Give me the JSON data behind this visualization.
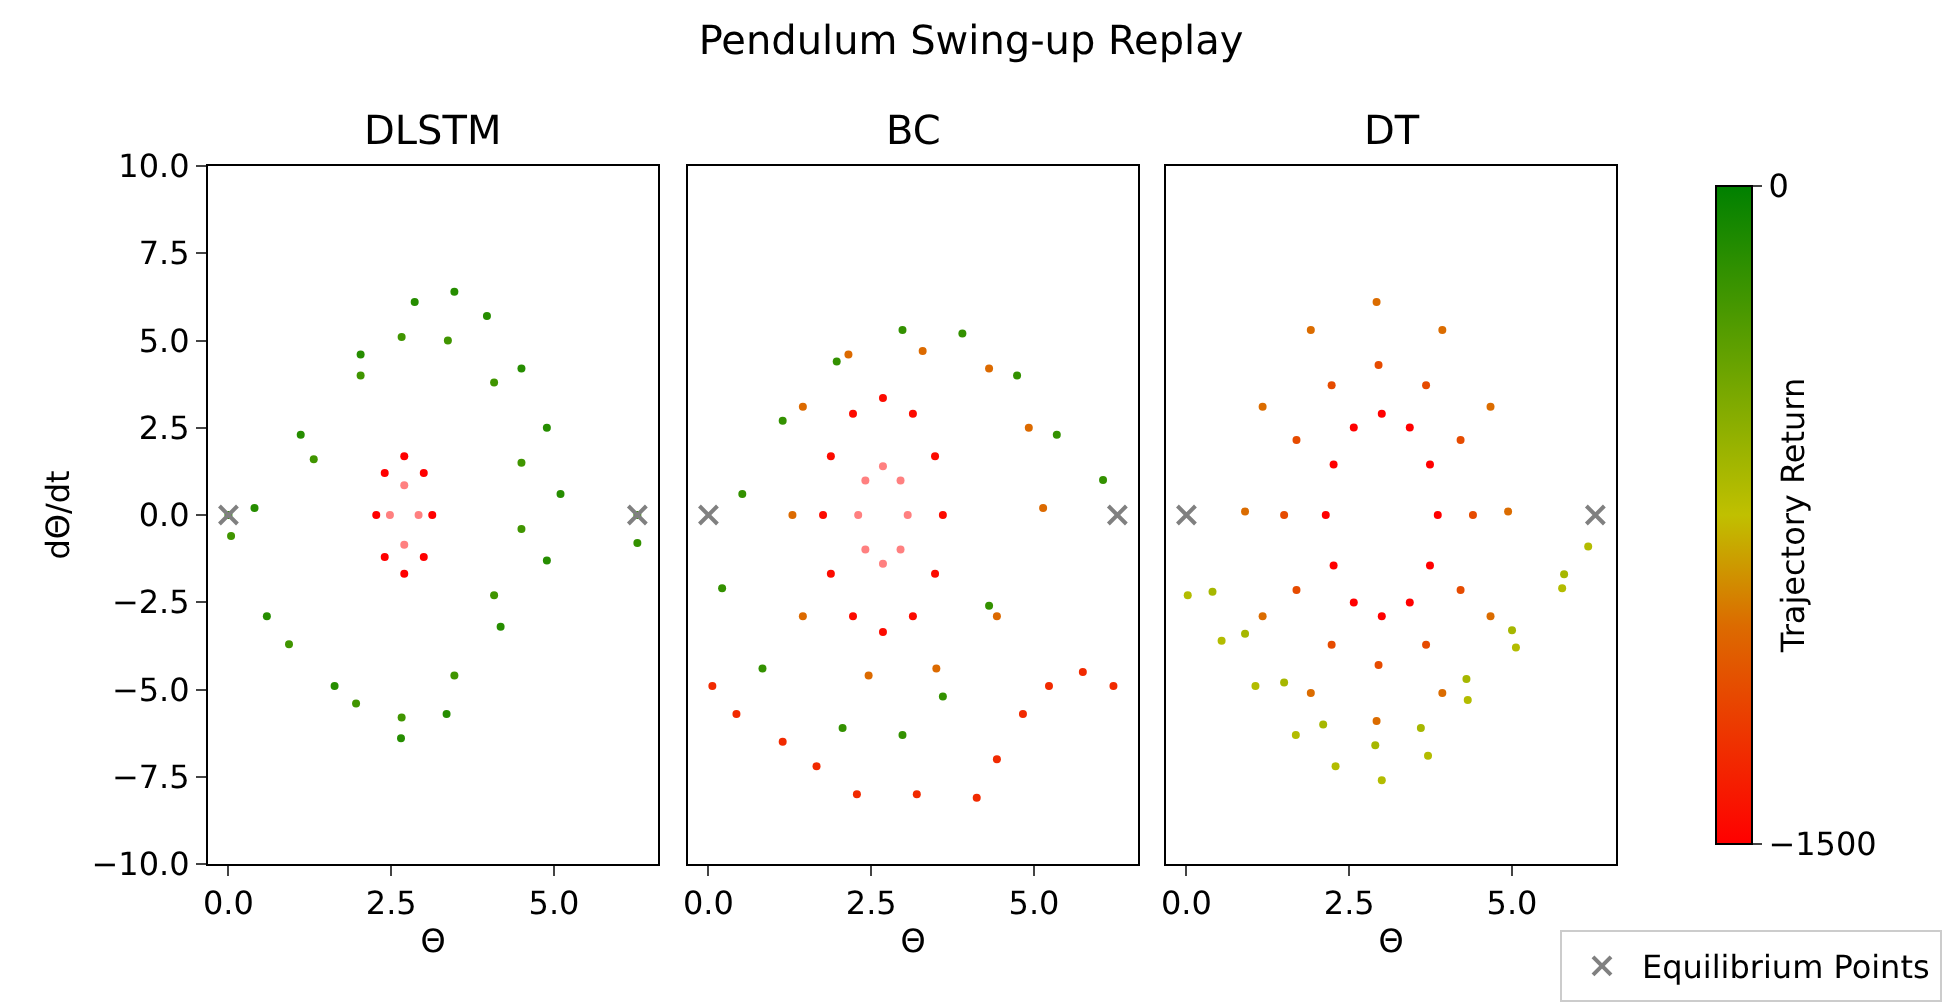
{
  "chart_data": [
    {
      "type": "scatter",
      "title": "DLSTM",
      "xlabel": "Θ",
      "ylabel": "dΘ/dt",
      "annotations": [
        "Pendulum Swing-up Replay"
      ],
      "xlim": [
        -0.314,
        6.597
      ],
      "xticks": [
        {
          "value": 0,
          "label": "0.0"
        },
        {
          "value": 2.5,
          "label": "2.5"
        },
        {
          "value": 5,
          "label": "5.0"
        }
      ],
      "ylim": [
        -10,
        10
      ],
      "yticks": [
        {
          "value": -10,
          "label": "−10.0"
        },
        {
          "value": -7.5,
          "label": "−7.5"
        },
        {
          "value": -5,
          "label": "−5.0"
        },
        {
          "value": -2.5,
          "label": "−2.5"
        },
        {
          "value": 0,
          "label": "0.0"
        },
        {
          "value": 2.5,
          "label": "2.5"
        },
        {
          "value": 5,
          "label": "5.0"
        },
        {
          "value": 7.5,
          "label": "7.5"
        },
        {
          "value": 10,
          "label": "10.0"
        }
      ],
      "series": [
        {
          "marker": "circle",
          "color": "#268d00",
          "x": [
            0,
            0.59,
            1.63,
            2.65,
            3.35,
            4.18,
            4.89,
            5.1,
            4.89,
            4.5,
            3.97,
            3.47,
            2.86,
            2.03,
            1.11,
            0.4
          ],
          "values": [
            0,
            -2.9,
            -4.9,
            -6.4,
            -5.7,
            -3.2,
            -1.3,
            0.6,
            2.5,
            4.2,
            5.7,
            6.4,
            6.1,
            4.6,
            2.3,
            0.2
          ]
        },
        {
          "marker": "circle",
          "color": "#409500",
          "x": [
            0.04,
            0.93,
            1.96,
            2.66,
            3.47,
            4.08,
            4.5,
            4.5,
            4.08,
            3.37,
            2.66,
            2.03,
            1.31
          ],
          "values": [
            -0.6,
            -3.7,
            -5.4,
            -5.8,
            -4.6,
            -2.3,
            -0.4,
            1.5,
            3.8,
            5.0,
            5.1,
            4.0,
            1.6
          ]
        },
        {
          "marker": "circle",
          "color": "#ff0000",
          "x": [
            2.7,
            3.0,
            3.13,
            3.0,
            2.7,
            2.4,
            2.27,
            2.4
          ],
          "values": [
            1.68,
            1.2,
            0,
            -1.2,
            -1.68,
            -1.2,
            0,
            1.2
          ]
        },
        {
          "marker": "circle",
          "color": "#ff8080",
          "x": [
            2.7,
            2.92,
            2.7,
            2.48
          ],
          "values": [
            0.85,
            0,
            -0.85,
            0
          ]
        },
        {
          "marker": "circle",
          "color": "#339100",
          "x": [
            6.28,
            6.28
          ],
          "values": [
            0,
            -0.8
          ]
        },
        {
          "marker": "cross",
          "color": "#808080",
          "x": [
            0,
            6.28
          ],
          "values": [
            0,
            0
          ]
        }
      ]
    },
    {
      "type": "scatter",
      "title": "BC",
      "xlabel": "Θ",
      "tick_labels": "x",
      "xlim": [
        -0.314,
        6.597
      ],
      "xticks": [
        {
          "value": 0,
          "label": "0.0"
        },
        {
          "value": 2.5,
          "label": "2.5"
        },
        {
          "value": 5,
          "label": "5.0"
        }
      ],
      "ylim": [
        -10,
        10
      ],
      "series": [
        {
          "marker": "circle",
          "color": "#fc0b00",
          "x": [
            3.6,
            3.48,
            3.14,
            2.68,
            2.22,
            1.88,
            1.76,
            1.88,
            2.22,
            2.68,
            3.14,
            3.48
          ],
          "values": [
            0,
            1.68,
            2.9,
            3.35,
            2.9,
            1.68,
            0,
            -1.68,
            -2.9,
            -3.35,
            -2.9,
            -1.68
          ]
        },
        {
          "marker": "circle",
          "color": "#ff8080",
          "x": [
            3.06,
            2.95,
            2.68,
            2.41,
            2.3,
            2.41,
            2.68,
            2.95
          ],
          "values": [
            0,
            0.99,
            1.4,
            0.99,
            0,
            -0.99,
            -1.4,
            -0.99
          ]
        },
        {
          "marker": "circle",
          "color": "#339100",
          "x": [
            0.21,
            0.83,
            2.06,
            2.98,
            3.6,
            4.31,
            0.52,
            1.14,
            1.97,
            2.98,
            3.9,
            4.74,
            5.35,
            6.06
          ],
          "values": [
            -2.1,
            -4.4,
            -6.1,
            -6.3,
            -5.2,
            -2.6,
            0.6,
            2.7,
            4.4,
            5.3,
            5.2,
            4.0,
            2.3,
            1.0
          ]
        },
        {
          "marker": "circle",
          "color": "#dc6a00",
          "x": [
            1.29,
            1.45,
            2.46,
            3.5,
            4.43,
            5.14,
            4.92,
            4.31,
            3.29,
            2.15,
            1.45
          ],
          "values": [
            0,
            -2.9,
            -4.6,
            -4.4,
            -2.9,
            0.2,
            2.5,
            4.2,
            4.7,
            4.6,
            3.1
          ]
        },
        {
          "marker": "circle",
          "color": "#f12a00",
          "x": [
            0.06,
            0.43,
            1.14,
            1.66,
            2.28,
            3.2,
            4.12,
            4.43,
            4.83,
            5.23,
            5.75,
            6.22
          ],
          "values": [
            -4.9,
            -5.7,
            -6.5,
            -7.2,
            -8.0,
            -8.0,
            -8.1,
            -7.0,
            -5.7,
            -4.9,
            -4.5,
            -4.9
          ]
        },
        {
          "marker": "cross",
          "color": "#808080",
          "x": [
            0,
            6.28
          ],
          "values": [
            0,
            0
          ]
        }
      ]
    },
    {
      "type": "scatter",
      "title": "DT",
      "xlabel": "Θ",
      "tick_labels": "x",
      "legend": "bottom right",
      "clabel": "Trajectory Return",
      "xlim": [
        -0.314,
        6.597
      ],
      "xticks": [
        {
          "value": 0,
          "label": "0.0"
        },
        {
          "value": 2.5,
          "label": "2.5"
        },
        {
          "value": 5,
          "label": "5.0"
        }
      ],
      "ylim": [
        -10,
        10
      ],
      "clim": [
        -1500,
        0
      ],
      "cticks": [
        {
          "value": -1500,
          "label": "−1500"
        },
        0
      ],
      "series": [
        {
          "marker": "circle",
          "x": [
            4.94,
            4.67,
            3.93,
            2.92,
            1.91,
            1.17,
            0.9,
            1.17,
            1.91,
            2.92,
            3.93,
            4.67
          ],
          "values": [
            0.1,
            3.1,
            5.3,
            6.1,
            5.3,
            3.1,
            0.1,
            -2.9,
            -5.1,
            -5.9,
            -5.1,
            -2.9
          ],
          "cvalues": [
            -1000,
            -1000,
            -1000,
            -1000,
            -1000,
            -1000,
            -1000,
            -1000,
            -1000,
            -1000,
            -1000,
            -1000
          ]
        },
        {
          "marker": "circle",
          "x": [
            4.4,
            4.21,
            3.68,
            2.95,
            2.23,
            1.69,
            1.5,
            1.69,
            2.23,
            2.95,
            3.68,
            4.21
          ],
          "values": [
            0,
            2.15,
            3.72,
            4.3,
            3.72,
            2.15,
            0,
            -2.15,
            -3.72,
            -4.3,
            -3.72,
            -2.15
          ],
          "cvalues": [
            -1150,
            -1150,
            -1150,
            -1150,
            -1150,
            -1150,
            -1150,
            -1150,
            -1150,
            -1150,
            -1150,
            -1150
          ]
        },
        {
          "marker": "circle",
          "x": [
            3.86,
            3.74,
            3.43,
            3.0,
            2.57,
            2.26,
            2.14,
            2.26,
            2.57,
            3.0,
            3.43,
            3.74
          ],
          "values": [
            0,
            1.45,
            2.51,
            2.9,
            2.51,
            1.45,
            0,
            -1.45,
            -2.51,
            -2.9,
            -2.51,
            -1.45
          ],
          "cvalues": [
            -1500,
            -1500,
            -1500,
            -1500,
            -1500,
            -1500,
            -1500,
            -1500,
            -1500,
            -1500,
            -1500,
            -1500
          ]
        },
        {
          "marker": "circle",
          "x": [
            0.02,
            0.54,
            1.06,
            1.68,
            2.29,
            3.0,
            3.71,
            4.32,
            5.06,
            5.77,
            6.17
          ],
          "values": [
            -2.3,
            -3.6,
            -4.9,
            -6.3,
            -7.2,
            -7.6,
            -6.9,
            -5.3,
            -3.8,
            -2.1,
            -0.9
          ],
          "cvalues": [
            -700,
            -700,
            -700,
            -700,
            -700,
            -700,
            -700,
            -700,
            -700,
            -700,
            -700
          ]
        },
        {
          "marker": "circle",
          "x": [
            0.4,
            0.9,
            1.5,
            2.1,
            2.9,
            3.6,
            4.3,
            5.0,
            5.8
          ],
          "values": [
            -2.2,
            -3.4,
            -4.8,
            -6.0,
            -6.6,
            -6.1,
            -4.7,
            -3.3,
            -1.7
          ],
          "cvalues": [
            -650,
            -650,
            -650,
            -650,
            -650,
            -650,
            -650,
            -650,
            -650
          ]
        },
        {
          "marker": "cross",
          "name": "Equilibrium Points",
          "color": "#808080",
          "x": [
            0,
            6.28
          ],
          "values": [
            0,
            0
          ]
        }
      ]
    }
  ]
}
